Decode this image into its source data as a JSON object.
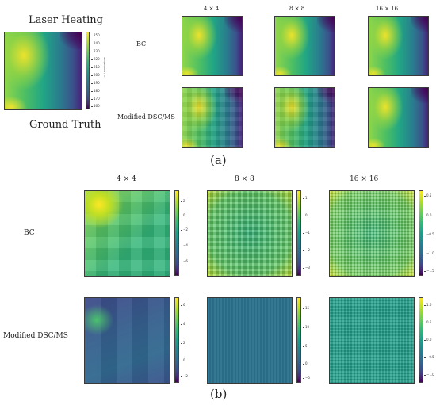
{
  "part_a": {
    "title": "Laser Heating",
    "subtitle": "Ground Truth",
    "colorbar_label": "Temperature / °C",
    "colorbar_ticks": [
      "250",
      "240",
      "230",
      "220",
      "210",
      "200",
      "190",
      "180",
      "170",
      "160"
    ],
    "col_labels": [
      "4 × 4",
      "8 × 8",
      "16 × 16"
    ],
    "row_labels": [
      "BC",
      "Modified DSC/MS"
    ],
    "caption": "(a)"
  },
  "part_b": {
    "col_labels": [
      "4 × 4",
      "8 × 8",
      "16 × 16"
    ],
    "row_labels": [
      "BC",
      "Modified DSC/MS"
    ],
    "colorbars": {
      "bc_4": [
        "2",
        "0",
        "−2",
        "−4",
        "−6"
      ],
      "bc_8": [
        "1",
        "0",
        "−1",
        "−2",
        "−3"
      ],
      "bc_16": [
        "0.5",
        "0.0",
        "−0.5",
        "−1.0",
        "−1.5"
      ],
      "ms_4": [
        "6",
        "4",
        "2",
        "0",
        "−2"
      ],
      "ms_8": [
        "15",
        "10",
        "5",
        "0",
        "−5"
      ],
      "ms_16": [
        "1.0",
        "0.5",
        "0.0",
        "−0.5",
        "−1.0"
      ]
    },
    "caption": "(b)"
  },
  "colormap": "viridis",
  "colors": {
    "viridis_high": "#fde725",
    "viridis_low": "#440154"
  }
}
